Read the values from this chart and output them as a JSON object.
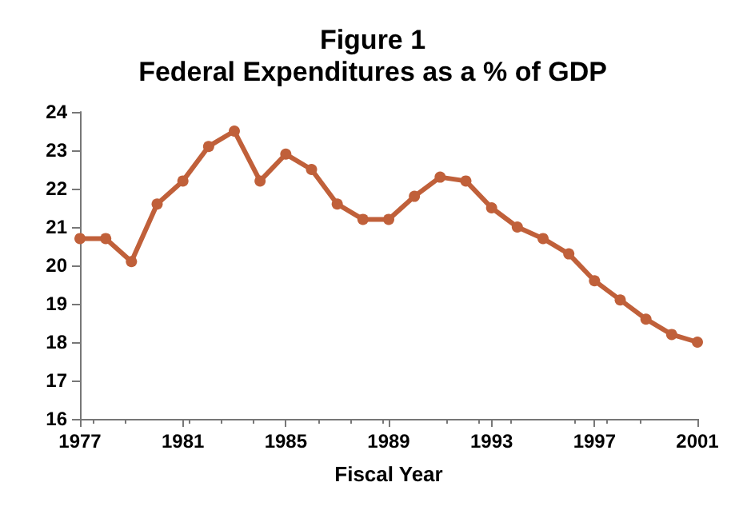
{
  "chart_data": {
    "type": "line",
    "title": "Figure 1\nFederal Expenditures as a % of GDP",
    "xlabel": "Fiscal Year",
    "x": [
      1977,
      1978,
      1979,
      1980,
      1981,
      1982,
      1983,
      1984,
      1985,
      1986,
      1987,
      1988,
      1989,
      1990,
      1991,
      1992,
      1993,
      1994,
      1995,
      1996,
      1997,
      1998,
      1999,
      2000,
      2001
    ],
    "series": [
      {
        "color": "#c0603a",
        "values": [
          20.7,
          20.7,
          20.1,
          21.6,
          22.2,
          23.1,
          23.5,
          22.2,
          22.9,
          22.5,
          21.6,
          21.2,
          21.2,
          21.8,
          22.3,
          22.2,
          21.5,
          21.0,
          20.7,
          20.3,
          19.6,
          19.1,
          18.6,
          18.2,
          18.0
        ]
      }
    ],
    "xlim": [
      1977,
      2001
    ],
    "xticks": [
      1977,
      1981,
      1985,
      1989,
      1993,
      1997,
      2001
    ],
    "ylim": [
      16,
      24
    ],
    "yticks": [
      16,
      17,
      18,
      19,
      20,
      21,
      22,
      23,
      24
    ],
    "grid": false,
    "marker": "circle",
    "line_style": "solid"
  }
}
